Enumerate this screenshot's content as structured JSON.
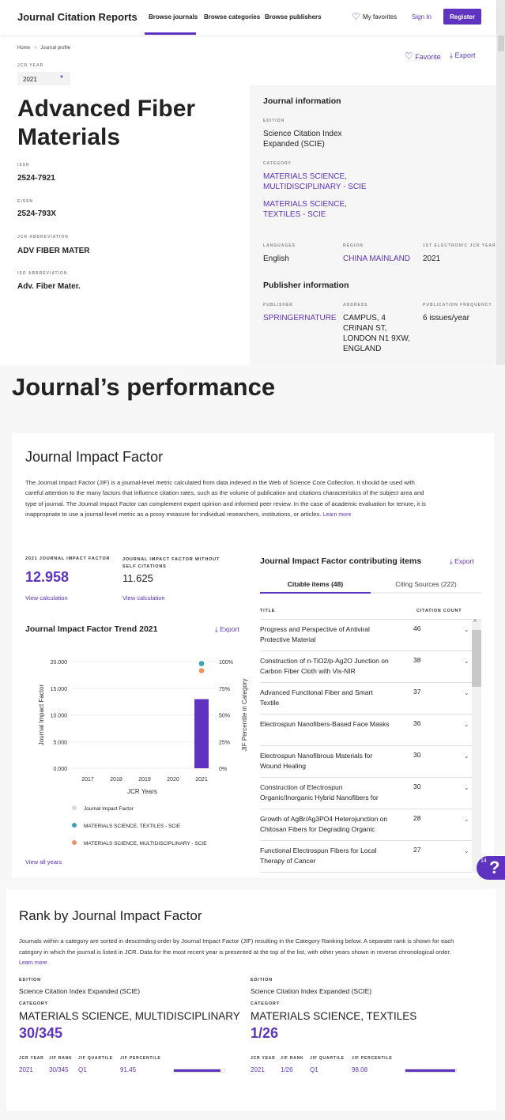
{
  "header": {
    "brand": "Journal Citation Reports",
    "nav": [
      "Browse journals",
      "Browse categories",
      "Browse publishers"
    ],
    "favorites": "My favorites",
    "signin": "Sign In",
    "register": "Register"
  },
  "breadcrumb": {
    "home": "Home",
    "current": "Journal profile"
  },
  "actions": {
    "favorite": "Favorite",
    "export": "Export"
  },
  "jcr_year": {
    "label": "JCR YEAR",
    "value": "2021"
  },
  "journal": {
    "title_line1": "Advanced Fiber",
    "title_line2": "Materials",
    "fields": [
      {
        "label": "ISSN",
        "value": "2524-7921"
      },
      {
        "label": "EISSN",
        "value": "2524-793X"
      },
      {
        "label": "JCR ABBREVIATION",
        "value": "ADV FIBER MATER"
      },
      {
        "label": "ISO ABBREVIATION",
        "value": "Adv. Fiber Mater."
      }
    ]
  },
  "info": {
    "title": "Journal information",
    "edition_label": "EDITION",
    "edition_line1": "Science Citation Index",
    "edition_line2": "Expanded (SCIE)",
    "category_label": "CATEGORY",
    "cat1_line1": "MATERIALS SCIENCE,",
    "cat1_line2": "MULTIDISCIPLINARY - SCIE",
    "cat2_line1": "MATERIALS SCIENCE,",
    "cat2_line2": "TEXTILES - SCIE",
    "languages_label": "LANGUAGES",
    "languages": "English",
    "region_label": "REGION",
    "region": "CHINA MAINLAND",
    "first_year_label": "1ST ELECTRONIC JCR YEAR",
    "first_year": "2021"
  },
  "publisher": {
    "title": "Publisher information",
    "publisher_label": "PUBLISHER",
    "publisher": "SPRINGERNATURE",
    "address_label": "ADDRESS",
    "address": [
      "CAMPUS, 4",
      "CRINAN ST,",
      "LONDON N1 9XW,",
      "ENGLAND"
    ],
    "frequency_label": "PUBLICATION FREQUENCY",
    "frequency": "6 issues/year"
  },
  "performance_title": "Journal’s performance",
  "jif": {
    "title": "Journal Impact Factor",
    "description": "The Journal Impact Factor (JIF) is a journal-level metric calculated from data indexed in the Web of Science Core Collection. It should be used with careful attention to the many factors that influence citation rates, such as the volume of publication and citations characteristics of the subject area and type of journal. The Journal Impact Factor can complement expert opinion and informed peer review. In the case of academic evaluation for tenure, it is inappropriate to use a journal-level metric as a proxy measure for individual researchers, institutions, or articles.",
    "learn_more": "Learn more",
    "jif_label": "2021 JOURNAL IMPACT FACTOR",
    "jif_value": "12.958",
    "noself_label": "JOURNAL IMPACT FACTOR WITHOUT SELF CITATIONS",
    "noself_value": "11.625",
    "view_calc": "View calculation",
    "trend_title": "Journal Impact Factor Trend 2021",
    "export": "Export",
    "view_all": "View all years"
  },
  "chart_data": {
    "type": "bar",
    "categories": [
      "2017",
      "2018",
      "2019",
      "2020",
      "2021"
    ],
    "xlabel": "JCR Years",
    "ylabel": "Journal Impact Factor",
    "y2label": "JIF Percentile in Category",
    "ylim": [
      0,
      20
    ],
    "yticks": [
      "0.000",
      "5.000",
      "10.000",
      "15.000",
      "20.000"
    ],
    "y2ticks": [
      "0%",
      "25%",
      "50%",
      "75%",
      "100%"
    ],
    "grid": true,
    "legend": "bottom",
    "series": [
      {
        "name": "Journal Impact Factor",
        "type": "bar",
        "color": "#5e33bf",
        "legend_color": "#d9d9d9",
        "values": [
          null,
          null,
          null,
          null,
          12.958
        ]
      },
      {
        "name": "MATERIALS SCIENCE, TEXTILES - SCIE",
        "type": "scatter",
        "axis": "percentile",
        "color": "#3aa3b5",
        "values": [
          null,
          null,
          null,
          null,
          98.08
        ]
      },
      {
        "name": "MATERIALS SCIENCE, MULTIDISCIPLINARY - SCIE",
        "type": "scatter",
        "axis": "percentile",
        "color": "#f0935c",
        "values": [
          null,
          null,
          null,
          null,
          91.45
        ]
      }
    ]
  },
  "contrib": {
    "title": "Journal Impact Factor contributing items",
    "export": "Export",
    "tab1": "Citable items (48)",
    "tab2": "Citing Sources (222)",
    "col_title": "TITLE",
    "col_count": "CITATION COUNT",
    "items": [
      {
        "l1": "Progress and Perspective of Antiviral",
        "l2": "Protective Material",
        "count": "46"
      },
      {
        "l1": "Construction of n-TiO2/p-Ag2O Junction on",
        "l2": "Carbon Fiber Cloth with Vis-NIR",
        "count": "38"
      },
      {
        "l1": "Advanced Functional Fiber and Smart",
        "l2": "Textile",
        "count": "37"
      },
      {
        "l1": "Electrospun Nanofibers-Based Face Masks",
        "l2": "",
        "count": "36"
      },
      {
        "l1": "Electrospun Nanofibrous Materials for",
        "l2": "Wound Healing",
        "count": "30"
      },
      {
        "l1": "Construction of Electrospun",
        "l2": "Organic/Inorganic Hybrid Nanofibers for",
        "count": "30"
      },
      {
        "l1": "Growth of AgBr/Ag3PO4 Heterojunction on",
        "l2": "Chitosan Fibers for Degrading Organic",
        "count": "28"
      },
      {
        "l1": "Functional Electrospun Fibers for Local",
        "l2": "Therapy of Cancer",
        "count": "27"
      }
    ]
  },
  "help": {
    "badge": "14",
    "icon": "?"
  },
  "rank": {
    "title": "Rank by Journal Impact Factor",
    "description": "Journals within a category are sorted in descending order by Journal Impact Factor (JIF) resulting in the Category Ranking below. A separate rank is shown for each category in which the journal is listed in JCR. Data for the most recent year is presented at the top of the list, with other years shown in reverse chronological order.",
    "learn_more": "Learn more",
    "cols": [
      "JCR YEAR",
      "JIF RANK",
      "JIF QUARTILE",
      "JIF PERCENTILE"
    ],
    "cards": [
      {
        "edition_label": "EDITION",
        "edition": "Science Citation Index Expanded (SCIE)",
        "category_label": "CATEGORY",
        "category": "MATERIALS SCIENCE, MULTIDISCIPLINARY",
        "rank": "30/345",
        "year": "2021",
        "jif_rank": "30/345",
        "quartile": "Q1",
        "percentile": "91.45",
        "percentile_value": 91.45
      },
      {
        "edition_label": "EDITION",
        "edition": "Science Citation Index Expanded (SCIE)",
        "category_label": "CATEGORY",
        "category": "MATERIALS SCIENCE, TEXTILES",
        "rank": "1/26",
        "year": "2021",
        "jif_rank": "1/26",
        "quartile": "Q1",
        "percentile": "98.08",
        "percentile_value": 98.08
      }
    ]
  },
  "colors": {
    "accent": "#5e33bf"
  }
}
